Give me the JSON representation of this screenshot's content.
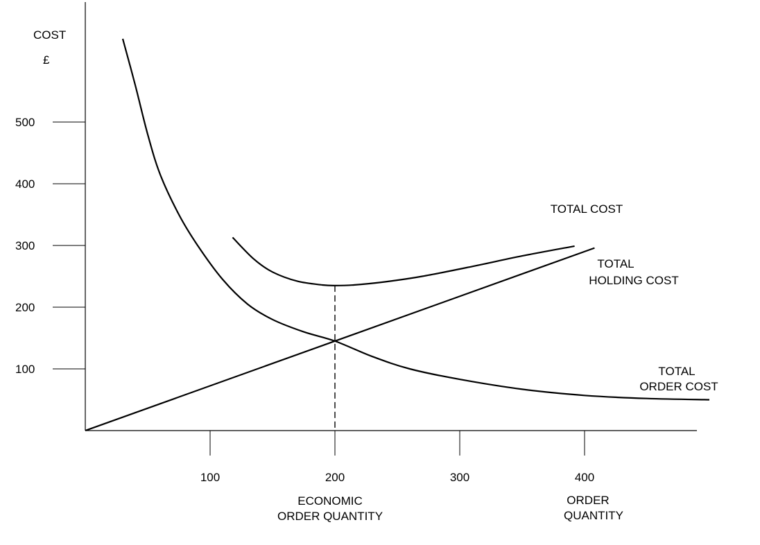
{
  "chart_data": {
    "type": "line",
    "title": "",
    "ylabel_lines": [
      "COST",
      "£"
    ],
    "xlabel_lines": [
      "ORDER",
      "QUANTITY"
    ],
    "eoq_label_lines": [
      "ECONOMIC",
      "ORDER QUANTITY"
    ],
    "xlim": [
      0,
      490
    ],
    "ylim": [
      0,
      640
    ],
    "x_ticks": [
      {
        "value": 100,
        "label": "100"
      },
      {
        "value": 200,
        "label": "200"
      },
      {
        "value": 300,
        "label": "300"
      },
      {
        "value": 400,
        "label": "400"
      }
    ],
    "y_ticks": [
      {
        "value": 100,
        "label": "100"
      },
      {
        "value": 200,
        "label": "200"
      },
      {
        "value": 300,
        "label": "300"
      },
      {
        "value": 400,
        "label": "400"
      },
      {
        "value": 500,
        "label": "500"
      }
    ],
    "grid": false,
    "legend": "none (series labelled directly on the chart)",
    "eoq": {
      "x": 200,
      "y": 145
    },
    "series": [
      {
        "name": "TOTAL ORDER COST",
        "label_lines": [
          "TOTAL",
          "ORDER COST"
        ],
        "x": [
          30,
          40,
          50,
          60,
          75,
          90,
          110,
          130,
          150,
          175,
          200,
          230,
          260,
          300,
          350,
          400,
          450,
          500
        ],
        "y": [
          635,
          560,
          480,
          415,
          350,
          300,
          245,
          205,
          180,
          160,
          145,
          120,
          100,
          83,
          67,
          57,
          52,
          50
        ]
      },
      {
        "name": "TOTAL HOLDING COST",
        "label_lines": [
          "TOTAL",
          "HOLDING COST"
        ],
        "x": [
          0,
          408
        ],
        "y": [
          0,
          296
        ]
      },
      {
        "name": "TOTAL COST",
        "label_lines": [
          "TOTAL COST"
        ],
        "x": [
          118,
          135,
          150,
          170,
          190,
          200,
          215,
          240,
          270,
          310,
          350,
          392
        ],
        "y": [
          313,
          278,
          257,
          242,
          236,
          235,
          236,
          241,
          250,
          266,
          283,
          299
        ]
      }
    ]
  }
}
